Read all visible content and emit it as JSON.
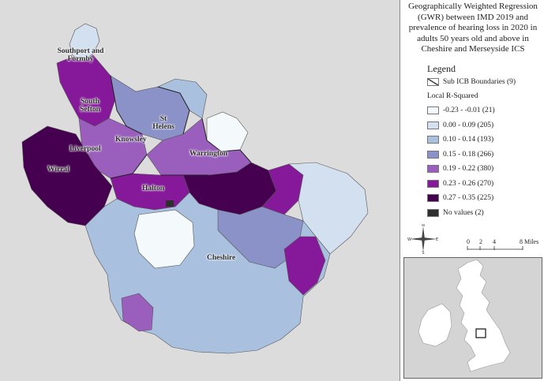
{
  "title": "Geographically Weighted Regression (GWR) between IMD 2019 and prevalence of hearing loss in 2020 in adults 50 years old and above in Cheshire and Merseyside ICS",
  "legend": {
    "heading": "Legend",
    "boundary_label": "Sub ICB Boundaries (9)",
    "subheading": "Local R-Squared",
    "classes": [
      {
        "label": "-0.23 - -0.01 (21)",
        "color": "#f4f9fb"
      },
      {
        "label": "0.00 - 0.09 (205)",
        "color": "#d3e0ef"
      },
      {
        "label": "0.10 - 0.14 (193)",
        "color": "#a9c0df"
      },
      {
        "label": "0.15 - 0.18 (266)",
        "color": "#8a92c8"
      },
      {
        "label": "0.19 - 0.22 (380)",
        "color": "#9a5fbd"
      },
      {
        "label": "0.23 - 0.26 (270)",
        "color": "#85199a"
      },
      {
        "label": "0.27 - 0.35 (225)",
        "color": "#45004f"
      },
      {
        "label": "No values (2)",
        "color": "#2f2f2f"
      }
    ]
  },
  "places": {
    "southport": "Southport and Formby",
    "south_sefton": "South Sefton",
    "st_helens": "St Helens",
    "knowsley": "Knowsley",
    "liverpool": "Liverpool",
    "warrington": "Warrington",
    "wirral": "Wirral",
    "halton": "Halton",
    "cheshire": "Cheshire"
  },
  "compass": {
    "n": "N",
    "s": "S",
    "e": "E",
    "w": "W"
  },
  "scale": {
    "ticks": [
      "0",
      "2",
      "4",
      "8 Miles"
    ]
  },
  "colors": {
    "map_background": "#dcdcdc",
    "inset_land": "#ffffff",
    "inset_sea": "#d4d4d4"
  }
}
